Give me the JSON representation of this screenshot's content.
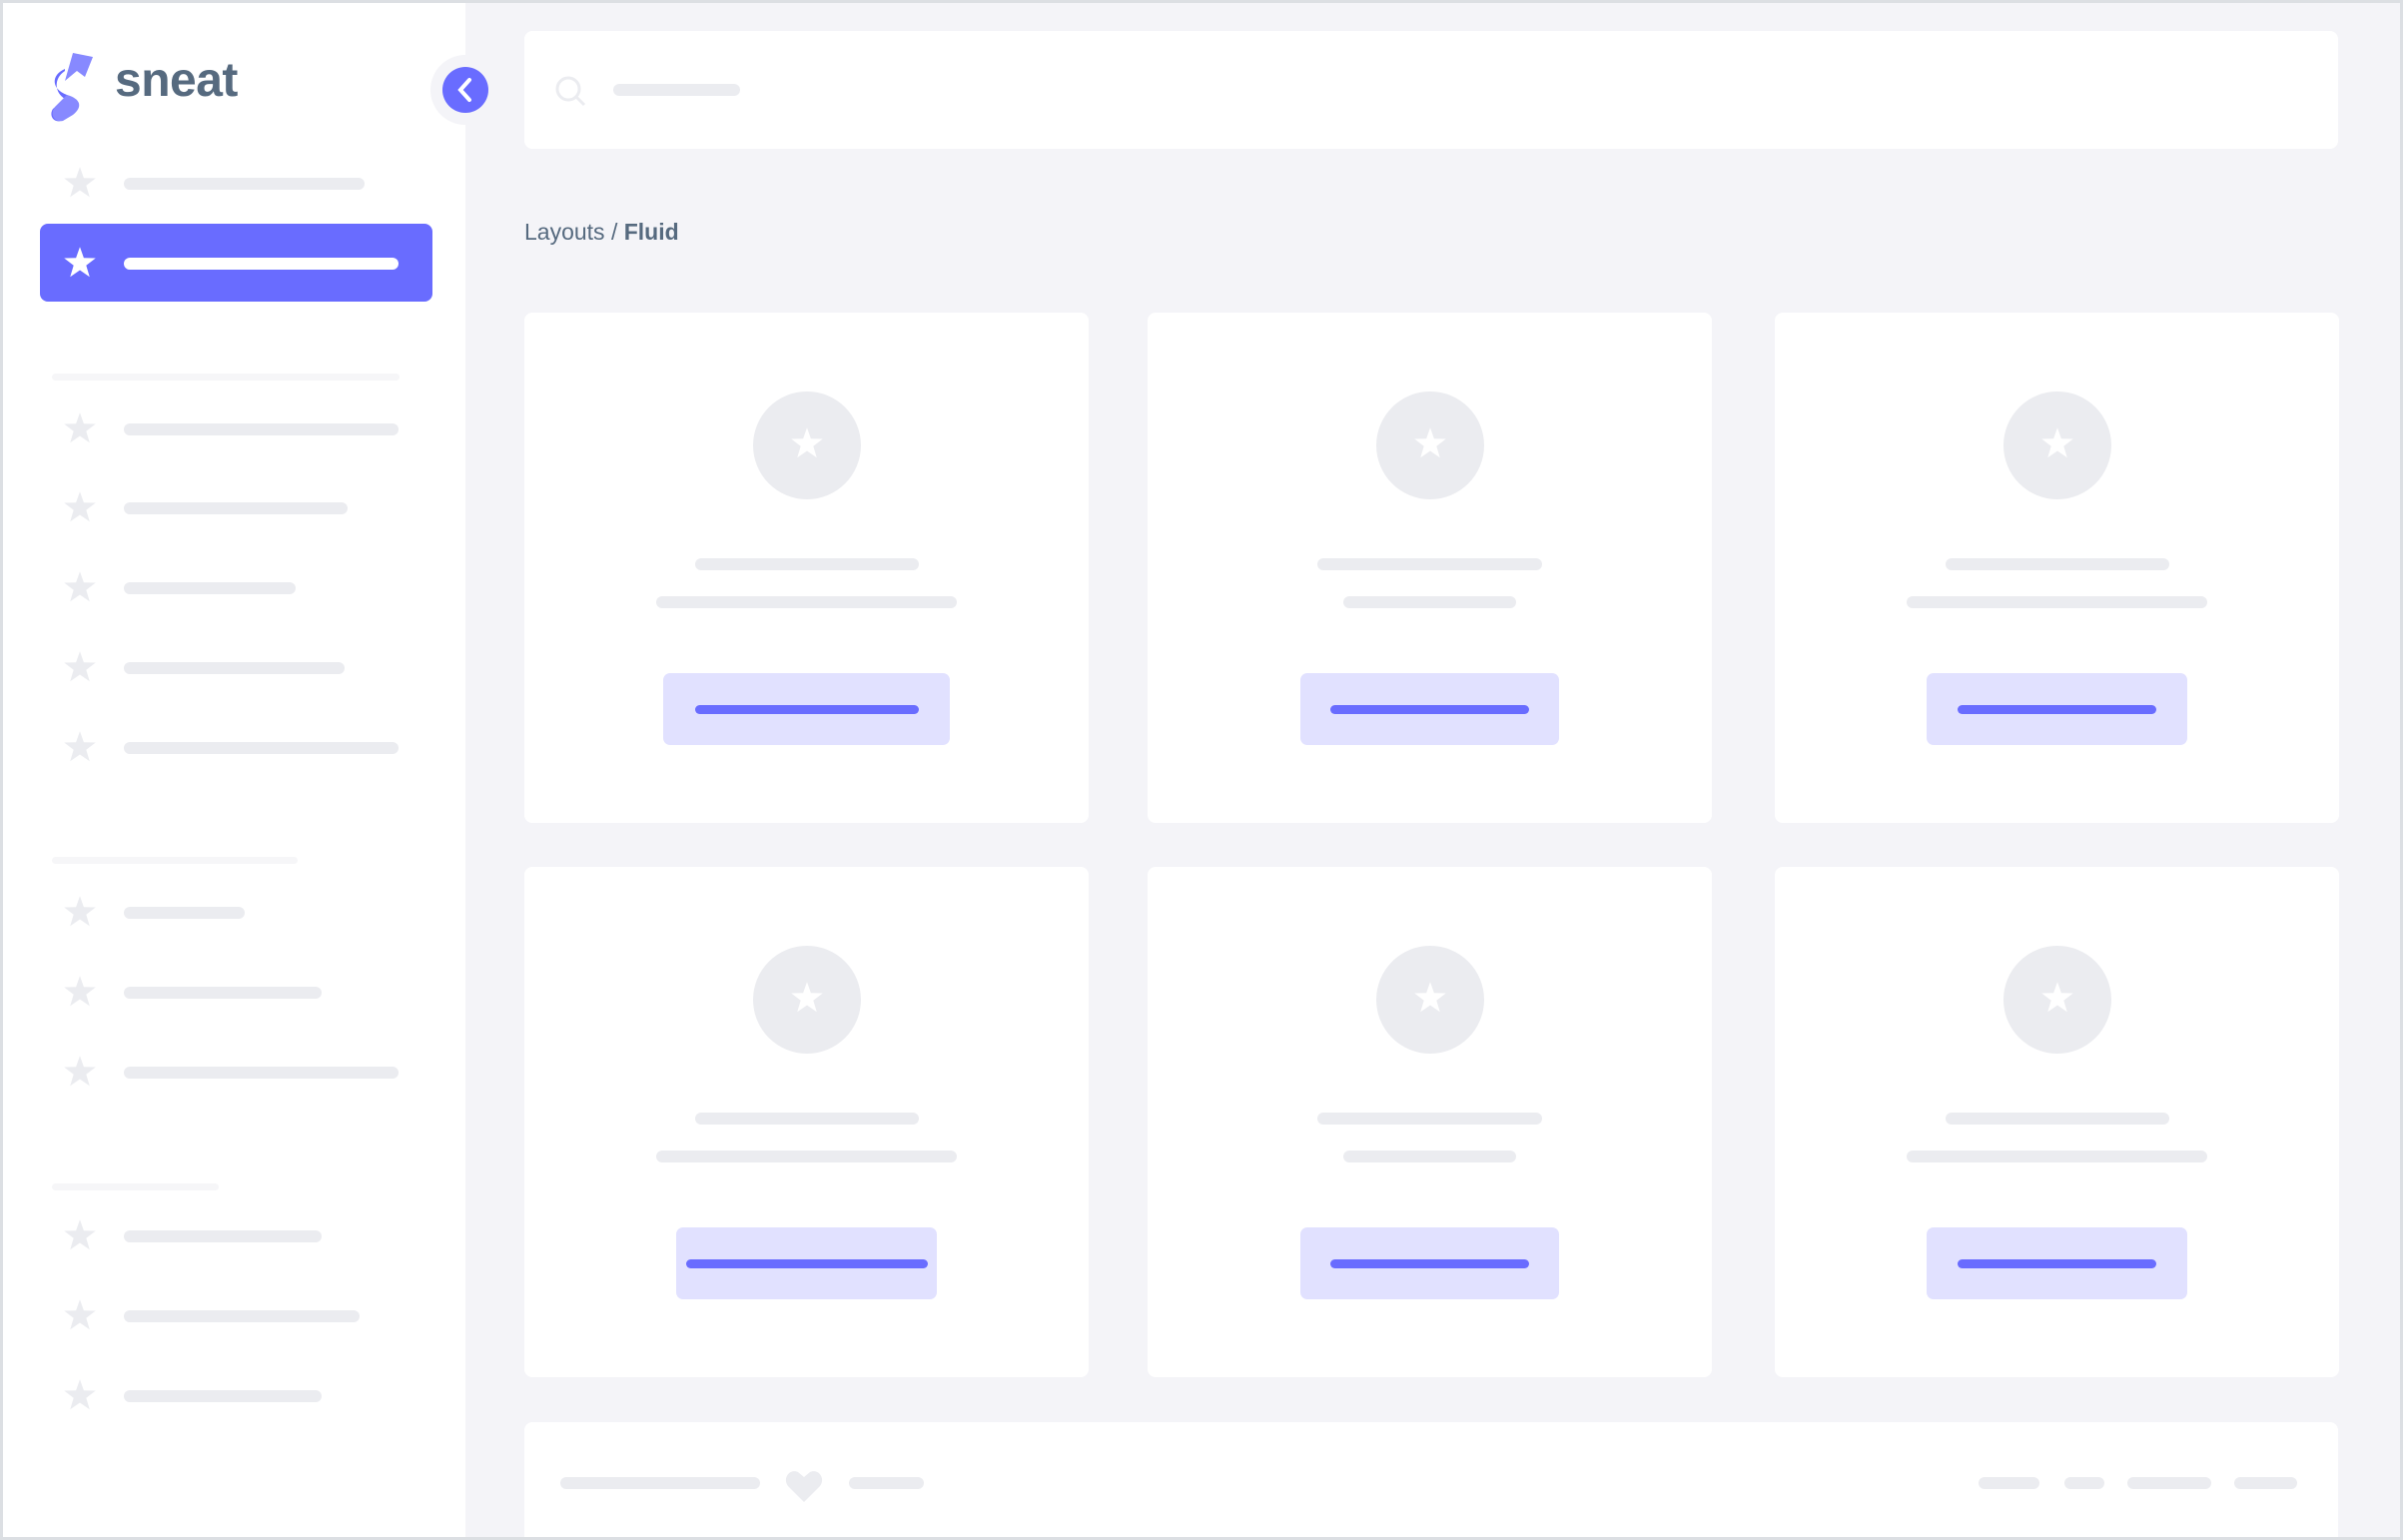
{
  "brand": {
    "name": "sneat",
    "logo_icon": "sneat-logo"
  },
  "breadcrumb": {
    "parent": "Layouts",
    "separator": " / ",
    "current": "Fluid"
  },
  "colors": {
    "primary": "#696cff",
    "primary_light": "#e1e1ff",
    "skeleton": "#ebecf0",
    "background": "#f4f4f8",
    "text": "#566a7f"
  },
  "icons": {
    "nav": "star-icon",
    "search": "search-icon",
    "user": "user-icon",
    "collapse": "chevron-left-icon",
    "footer": "heart-icon"
  },
  "sidebar": {
    "active_index": 1
  }
}
